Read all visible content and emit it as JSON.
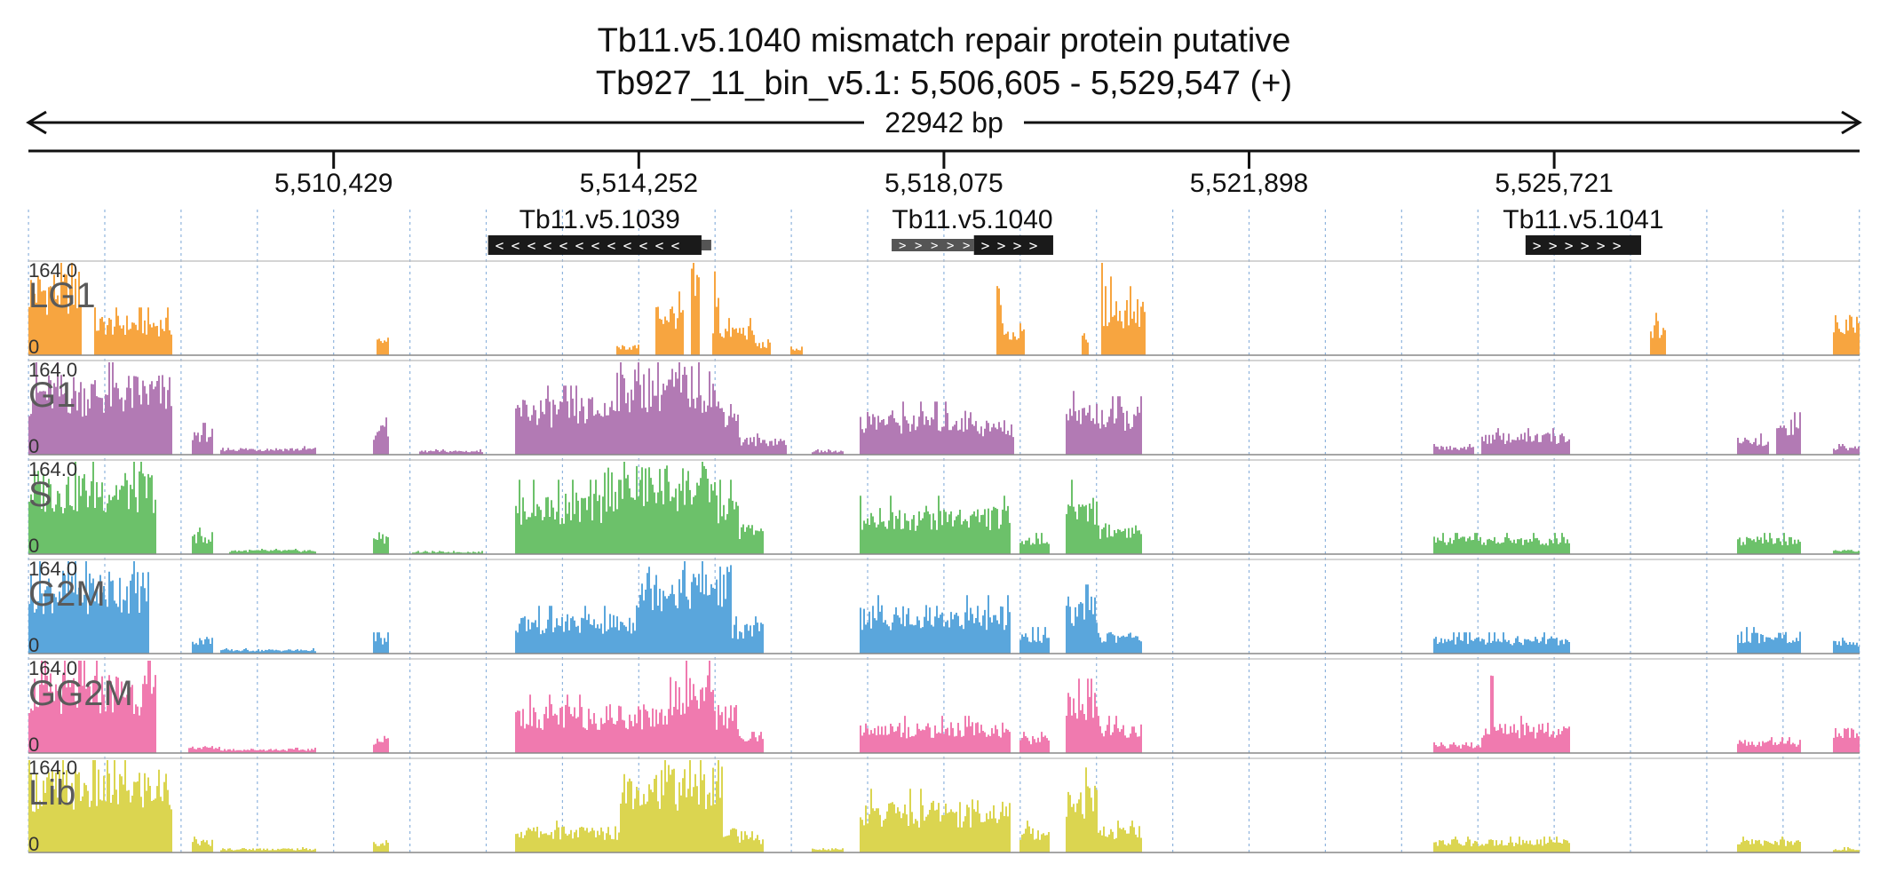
{
  "chart_data": {
    "type": "area",
    "title": "Tb11.v5.1040  mismatch repair protein  putative",
    "subtitle": "Tb927_11_bin_v5.1: 5,506,605 - 5,529,547 (+)",
    "span_label": "22942 bp",
    "xlim": [
      5506605,
      5529547
    ],
    "x_ticks": [
      {
        "value": 5510429,
        "label": "5,510,429"
      },
      {
        "value": 5514252,
        "label": "5,514,252"
      },
      {
        "value": 5518075,
        "label": "5,518,075"
      },
      {
        "value": 5521898,
        "label": "5,521,898"
      },
      {
        "value": 5525721,
        "label": "5,525,721"
      }
    ],
    "genes": [
      {
        "name": "Tb11.v5.1039",
        "strand": "-",
        "start": 5512364,
        "end": 5515038,
        "utr_start": 5515038,
        "utr_end": 5515160,
        "utr_side": "right"
      },
      {
        "name": "Tb11.v5.1040",
        "strand": "+",
        "start": 5518451,
        "end": 5519444,
        "utr_start": 5517420,
        "utr_end": 5518451,
        "utr_side": "left"
      },
      {
        "name": "Tb11.v5.1041",
        "strand": "+",
        "start": 5525362,
        "end": 5526810,
        "utr_start": null,
        "utr_end": null,
        "utr_side": null
      }
    ],
    "ylim": [
      0,
      164.0
    ],
    "y_max_label": "164.0",
    "y_min_label": "0",
    "series": [
      {
        "name": "LG1",
        "color": "#f7a540",
        "regions": [
          [
            5506605,
            5507270,
            0.95
          ],
          [
            5507410,
            5508400,
            0.45
          ],
          [
            5510950,
            5511120,
            0.2
          ],
          [
            5513950,
            5514250,
            0.12
          ],
          [
            5514450,
            5514800,
            0.6
          ],
          [
            5514900,
            5515000,
            1.0
          ],
          [
            5515170,
            5515700,
            0.35
          ],
          [
            5515180,
            5515240,
            1.0
          ],
          [
            5515700,
            5515900,
            0.15
          ],
          [
            5516150,
            5516300,
            0.08
          ],
          [
            5518750,
            5519080,
            0.3
          ],
          [
            5518720,
            5518780,
            1.0
          ],
          [
            5519780,
            5519880,
            0.3
          ],
          [
            5520030,
            5520600,
            0.65
          ],
          [
            5520030,
            5520060,
            1.0
          ],
          [
            5520140,
            5520170,
            1.0
          ],
          [
            5526900,
            5527100,
            0.4
          ],
          [
            5529200,
            5529547,
            0.5
          ]
        ]
      },
      {
        "name": "G1",
        "color": "#b27ab4",
        "regions": [
          [
            5506605,
            5508400,
            0.9
          ],
          [
            5508650,
            5508900,
            0.3
          ],
          [
            5509000,
            5510200,
            0.08
          ],
          [
            5510900,
            5511100,
            0.35
          ],
          [
            5511500,
            5512300,
            0.05
          ],
          [
            5512700,
            5515500,
            0.65
          ],
          [
            5513900,
            5515200,
            1.0
          ],
          [
            5515500,
            5516100,
            0.2
          ],
          [
            5516400,
            5516800,
            0.05
          ],
          [
            5517000,
            5518500,
            0.5
          ],
          [
            5518500,
            5518950,
            0.4
          ],
          [
            5519600,
            5520000,
            0.6
          ],
          [
            5520000,
            5520550,
            0.55
          ],
          [
            5524200,
            5524700,
            0.1
          ],
          [
            5524800,
            5525900,
            0.25
          ],
          [
            5528000,
            5528400,
            0.2
          ],
          [
            5528500,
            5528800,
            0.4
          ],
          [
            5529200,
            5529547,
            0.1
          ]
        ]
      },
      {
        "name": "S",
        "color": "#6cc16a",
        "regions": [
          [
            5506605,
            5508200,
            0.95
          ],
          [
            5508650,
            5508900,
            0.25
          ],
          [
            5509100,
            5510200,
            0.05
          ],
          [
            5510900,
            5511100,
            0.25
          ],
          [
            5511400,
            5512300,
            0.03
          ],
          [
            5512700,
            5515500,
            0.7
          ],
          [
            5513800,
            5515200,
            1.0
          ],
          [
            5515500,
            5515800,
            0.35
          ],
          [
            5517000,
            5518900,
            0.55
          ],
          [
            5519000,
            5519400,
            0.2
          ],
          [
            5519600,
            5520000,
            0.7
          ],
          [
            5520000,
            5520550,
            0.35
          ],
          [
            5524200,
            5525900,
            0.2
          ],
          [
            5528000,
            5528800,
            0.2
          ],
          [
            5529200,
            5529547,
            0.05
          ]
        ]
      },
      {
        "name": "G2M",
        "color": "#5aa6dc",
        "regions": [
          [
            5506605,
            5508100,
            0.95
          ],
          [
            5508650,
            5508900,
            0.2
          ],
          [
            5509000,
            5510200,
            0.05
          ],
          [
            5510900,
            5511100,
            0.2
          ],
          [
            5512700,
            5514200,
            0.45
          ],
          [
            5514200,
            5515400,
            1.0
          ],
          [
            5515400,
            5515800,
            0.35
          ],
          [
            5517000,
            5518900,
            0.55
          ],
          [
            5519000,
            5519400,
            0.25
          ],
          [
            5519600,
            5520000,
            0.65
          ],
          [
            5520000,
            5520550,
            0.25
          ],
          [
            5524200,
            5525900,
            0.2
          ],
          [
            5528000,
            5528800,
            0.25
          ],
          [
            5529200,
            5529547,
            0.15
          ]
        ]
      },
      {
        "name": "GG2M",
        "color": "#f07aaf",
        "regions": [
          [
            5506605,
            5508200,
            0.9
          ],
          [
            5508600,
            5509000,
            0.08
          ],
          [
            5509000,
            5510200,
            0.05
          ],
          [
            5510900,
            5511100,
            0.2
          ],
          [
            5512700,
            5515500,
            0.55
          ],
          [
            5514600,
            5515200,
            0.9
          ],
          [
            5515500,
            5515800,
            0.2
          ],
          [
            5517000,
            5518900,
            0.35
          ],
          [
            5519000,
            5519400,
            0.2
          ],
          [
            5519600,
            5520000,
            0.7
          ],
          [
            5520000,
            5520550,
            0.35
          ],
          [
            5524200,
            5524800,
            0.1
          ],
          [
            5524800,
            5525900,
            0.35
          ],
          [
            5524900,
            5524950,
            1.0
          ],
          [
            5528000,
            5528800,
            0.15
          ],
          [
            5529200,
            5529547,
            0.3
          ]
        ]
      },
      {
        "name": "Lib",
        "color": "#dbd550",
        "regions": [
          [
            5506605,
            5508400,
            0.95
          ],
          [
            5508650,
            5508900,
            0.15
          ],
          [
            5509000,
            5510200,
            0.05
          ],
          [
            5510900,
            5511100,
            0.15
          ],
          [
            5512700,
            5515500,
            0.3
          ],
          [
            5514000,
            5515300,
            1.0
          ],
          [
            5515500,
            5515800,
            0.2
          ],
          [
            5516400,
            5516800,
            0.05
          ],
          [
            5517000,
            5518900,
            0.6
          ],
          [
            5519000,
            5519400,
            0.3
          ],
          [
            5519600,
            5520000,
            0.8
          ],
          [
            5520000,
            5520550,
            0.3
          ],
          [
            5524200,
            5525900,
            0.15
          ],
          [
            5528000,
            5528800,
            0.15
          ],
          [
            5529200,
            5529547,
            0.05
          ]
        ]
      }
    ]
  }
}
